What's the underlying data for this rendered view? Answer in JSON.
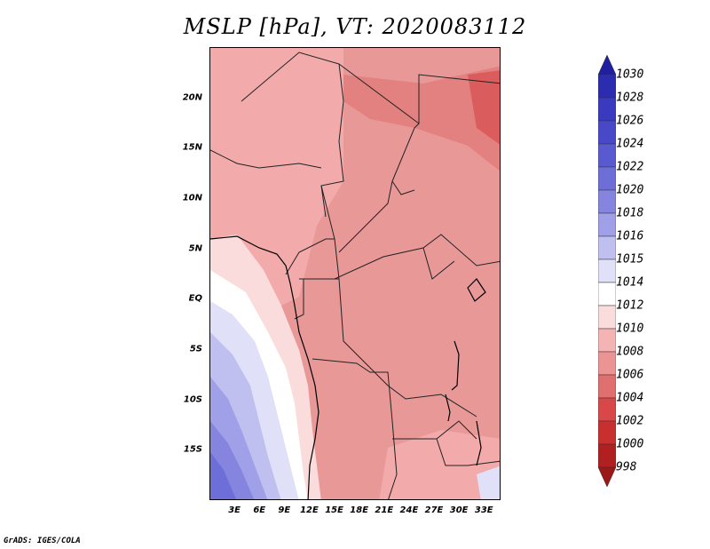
{
  "title": "MSLP [hPa], VT: 2020083112",
  "footer": "GrADS: IGES/COLA",
  "variable": "MSLP",
  "units": "hPa",
  "valid_time": "2020083112",
  "map_extent": {
    "lon_min": 0,
    "lon_max": 35,
    "lat_min": -20,
    "lat_max": 25
  },
  "lat_ticks": [
    {
      "label": "20N",
      "lat": 20
    },
    {
      "label": "15N",
      "lat": 15
    },
    {
      "label": "10N",
      "lat": 10
    },
    {
      "label": "5N",
      "lat": 5
    },
    {
      "label": "EQ",
      "lat": 0
    },
    {
      "label": "5S",
      "lat": -5
    },
    {
      "label": "10S",
      "lat": -10
    },
    {
      "label": "15S",
      "lat": -15
    }
  ],
  "lon_ticks": [
    {
      "label": "3E",
      "lon": 3
    },
    {
      "label": "6E",
      "lon": 6
    },
    {
      "label": "9E",
      "lon": 9
    },
    {
      "label": "12E",
      "lon": 12
    },
    {
      "label": "15E",
      "lon": 15
    },
    {
      "label": "18E",
      "lon": 18
    },
    {
      "label": "21E",
      "lon": 21
    },
    {
      "label": "24E",
      "lon": 24
    },
    {
      "label": "27E",
      "lon": 27
    },
    {
      "label": "30E",
      "lon": 30
    },
    {
      "label": "33E",
      "lon": 33
    }
  ],
  "colorbar": {
    "levels": [
      "1030",
      "1028",
      "1026",
      "1024",
      "1022",
      "1020",
      "1018",
      "1016",
      "1015",
      "1014",
      "1012",
      "1010",
      "1008",
      "1006",
      "1004",
      "1002",
      "1000",
      "998"
    ],
    "colors": [
      "#1f1fa0",
      "#2c2cb0",
      "#3a3ac0",
      "#4848c8",
      "#5a5ad0",
      "#6e6ed8",
      "#8585e0",
      "#a0a0e8",
      "#c0c0f0",
      "#e0e0f8",
      "#ffffff",
      "#fbdcdc",
      "#f5b4b4",
      "#ec9494",
      "#e07070",
      "#d84848",
      "#c83030",
      "#b02020",
      "#9a1818"
    ]
  }
}
